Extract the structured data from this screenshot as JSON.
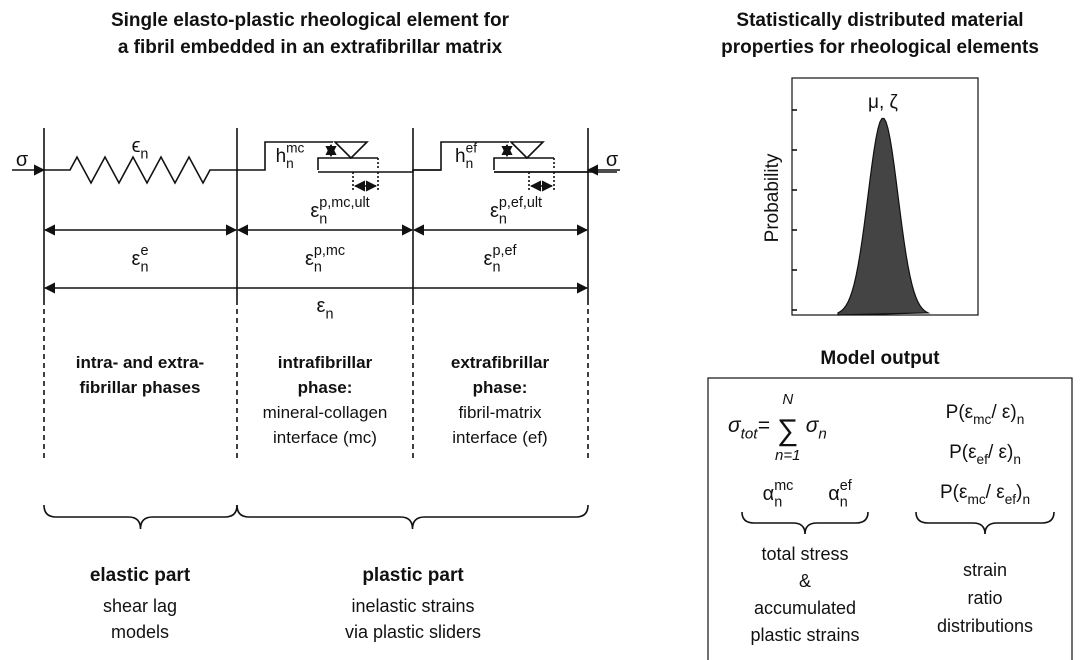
{
  "left": {
    "title": [
      "Single elasto-plastic rheological element for",
      "a fibril embedded in an extrafibrillar matrix"
    ],
    "stress_left": "σ",
    "stress_right": "σ",
    "spring_strain": [
      {
        "text": "ϵ"
      },
      {
        "text": "n",
        "style": "sub"
      }
    ],
    "h_mc": [
      {
        "text": "h"
      },
      {
        "text": "n",
        "style": "sub"
      },
      {
        "text": "mc",
        "style": "sup"
      }
    ],
    "h_ef": [
      {
        "text": "h"
      },
      {
        "text": "n",
        "style": "sub"
      },
      {
        "text": "ef",
        "style": "sup"
      }
    ],
    "ult_mc": [
      {
        "text": "ε"
      },
      {
        "text": "n",
        "style": "sub"
      },
      {
        "text": "p,mc,ult",
        "style": "sup"
      }
    ],
    "ult_ef": [
      {
        "text": "ε"
      },
      {
        "text": "n",
        "style": "sub"
      },
      {
        "text": "p,ef,ult",
        "style": "sup"
      }
    ],
    "strain_e": [
      {
        "text": "ε"
      },
      {
        "text": "n",
        "style": "sub"
      },
      {
        "text": "e",
        "style": "sup"
      }
    ],
    "strain_pmc": [
      {
        "text": "ε"
      },
      {
        "text": "n",
        "style": "sub"
      },
      {
        "text": "p,mc",
        "style": "sup"
      }
    ],
    "strain_pef": [
      {
        "text": "ε"
      },
      {
        "text": "n",
        "style": "sub"
      },
      {
        "text": "p,ef",
        "style": "sup"
      }
    ],
    "strain_total": [
      {
        "text": "ε"
      },
      {
        "text": "n",
        "style": "sub"
      }
    ],
    "phases": [
      {
        "heading": [
          "intra- and extra-",
          "fibrillar phases"
        ],
        "detail": []
      },
      {
        "heading": [
          "intrafibrillar",
          "phase:"
        ],
        "detail": [
          "mineral-collagen",
          "interface (mc)"
        ]
      },
      {
        "heading": [
          "extrafibrillar",
          "phase:"
        ],
        "detail": [
          "fibril-matrix",
          "interface (ef)"
        ]
      }
    ],
    "parts": [
      {
        "heading": "elastic part",
        "detail": [
          "shear lag",
          "models"
        ]
      },
      {
        "heading": "plastic part",
        "detail": [
          "inelastic strains",
          "via plastic sliders"
        ]
      }
    ]
  },
  "right": {
    "title": [
      "Statistically distributed material",
      "properties for rheological elements"
    ],
    "peak_label": "μ, ζ",
    "y_label": "Probability",
    "output_title": "Model output",
    "formula": {
      "lhs": [
        {
          "text": "σ"
        },
        {
          "text": "tot",
          "style": "sub"
        },
        {
          "text": " = "
        }
      ],
      "sum": "∑",
      "upper": "N",
      "lower": "n=1",
      "rhs": [
        {
          "text": "σ"
        },
        {
          "text": "n",
          "style": "sub"
        }
      ]
    },
    "alpha_mc": [
      {
        "text": "α"
      },
      {
        "text": "n",
        "style": "sub"
      },
      {
        "text": "mc",
        "style": "sup"
      }
    ],
    "alpha_ef": [
      {
        "text": "α"
      },
      {
        "text": "n",
        "style": "sub"
      },
      {
        "text": "ef",
        "style": "sup"
      }
    ],
    "ratios": [
      [
        {
          "text": "P(ε"
        },
        {
          "text": "mc",
          "style": "sub"
        },
        {
          "text": " / ε)"
        },
        {
          "text": "n",
          "style": "sub"
        }
      ],
      [
        {
          "text": "P(ε"
        },
        {
          "text": "ef",
          "style": "sub"
        },
        {
          "text": " / ε)"
        },
        {
          "text": "n",
          "style": "sub"
        }
      ],
      [
        {
          "text": "P(ε"
        },
        {
          "text": "mc",
          "style": "sub"
        },
        {
          "text": " / ε"
        },
        {
          "text": "ef",
          "style": "sub"
        },
        {
          "text": ")"
        },
        {
          "text": "n",
          "style": "sub"
        }
      ]
    ],
    "stress_caption": [
      "total stress",
      "&",
      "accumulated",
      "plastic strains"
    ],
    "ratio_caption": [
      "strain",
      "ratio",
      "distributions"
    ]
  }
}
